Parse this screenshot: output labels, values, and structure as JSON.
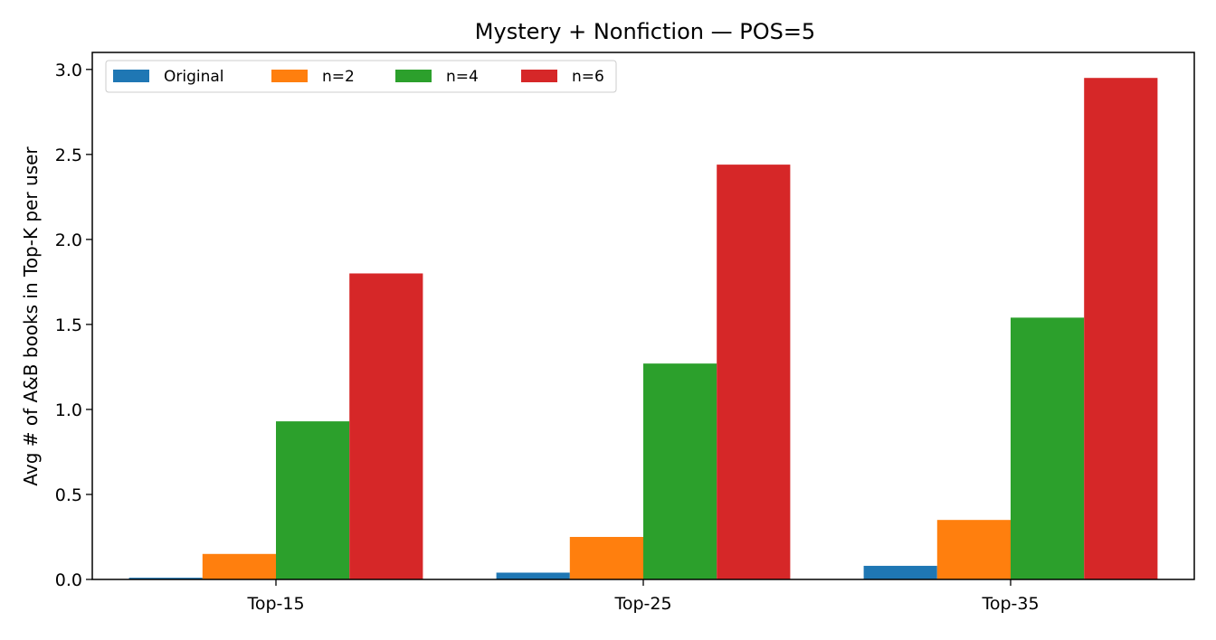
{
  "chart_data": {
    "type": "bar",
    "title": "Mystery + Nonfiction — POS=5",
    "xlabel": "",
    "ylabel": "Avg # of A&B books in Top-K per user",
    "categories": [
      "Top-15",
      "Top-25",
      "Top-35"
    ],
    "ylim": [
      0,
      3.1
    ],
    "yticks": [
      0.0,
      0.5,
      1.0,
      1.5,
      2.0,
      2.5,
      3.0
    ],
    "ytick_labels": [
      "0.0",
      "0.5",
      "1.0",
      "1.5",
      "2.0",
      "2.5",
      "3.0"
    ],
    "grid": false,
    "legend_position": "top-left",
    "series": [
      {
        "name": "Original",
        "color": "#1f77b4",
        "values": [
          0.01,
          0.04,
          0.08
        ]
      },
      {
        "name": "n=2",
        "color": "#ff7f0e",
        "values": [
          0.15,
          0.25,
          0.35
        ]
      },
      {
        "name": "n=4",
        "color": "#2ca02c",
        "values": [
          0.93,
          1.27,
          1.54
        ]
      },
      {
        "name": "n=6",
        "color": "#d62728",
        "values": [
          1.8,
          2.44,
          2.95
        ]
      }
    ]
  }
}
